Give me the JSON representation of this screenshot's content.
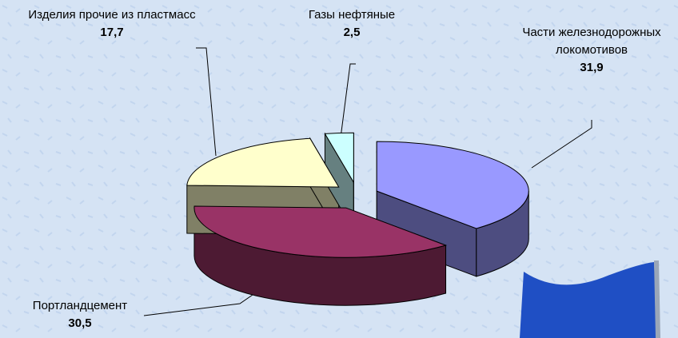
{
  "chart_data": {
    "type": "pie",
    "categories": [
      "Части железнодорожных локомотивов",
      "Портландцемент",
      "Изделия прочие из пластмасс",
      "Газы нефтяные"
    ],
    "values": [
      31.9,
      30.5,
      17.7,
      2.5
    ],
    "value_labels": [
      "31,9",
      "30,5",
      "17,7",
      "2,5"
    ],
    "colors": [
      "#9999ff",
      "#993366",
      "#ffffcc",
      "#ccffff"
    ]
  }
}
